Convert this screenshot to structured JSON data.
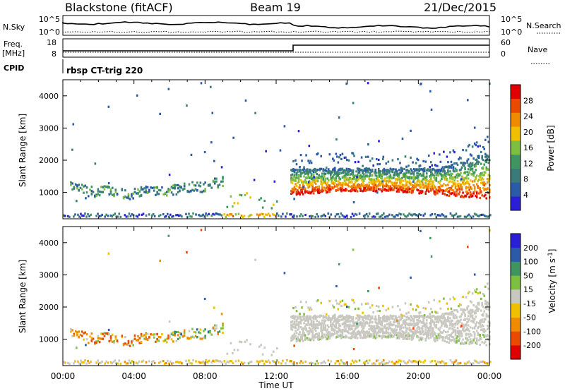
{
  "header": {
    "station": "Blackstone (fitACF)",
    "beam": "Beam 19",
    "date": "21/Dec/2015"
  },
  "panels": {
    "nsky": {
      "left_label": "N.Sky",
      "right_label": "N.Search",
      "yticks_left": [
        "10^5",
        "10^0"
      ],
      "yticks_right": [
        "10^5",
        "10^0"
      ]
    },
    "freq": {
      "left_label_1": "Freq.",
      "left_label_2": "[MHz]",
      "right_label": "Nave",
      "yticks_left": [
        "18",
        "8"
      ],
      "yticks_right": [
        "60",
        "0"
      ]
    },
    "cpid": {
      "left_label": "CPID",
      "mode": "rbsp CT-trig 220"
    }
  },
  "xaxis": {
    "label": "Time UT",
    "ticks": [
      "00:00",
      "04:00",
      "08:00",
      "12:00",
      "16:00",
      "20:00",
      "00:00"
    ]
  },
  "colors": {
    "power": [
      "#2a1fd6",
      "#2b5aa8",
      "#3a7a7a",
      "#3f9560",
      "#7fbf3f",
      "#f0c000",
      "#f08a00",
      "#ea4a00",
      "#e00000"
    ],
    "velocity": [
      "#e00000",
      "#ea4a00",
      "#f08a00",
      "#f0c000",
      "#c8c8c0",
      "#7fbf3f",
      "#3f9560",
      "#2b5aa8",
      "#2a1fd6"
    ]
  },
  "chart_data": [
    {
      "type": "heatmap",
      "title": "Power",
      "xlabel": "Time UT",
      "ylabel": "Slant Range [km]",
      "xlim": [
        "00:00",
        "24:00"
      ],
      "ylim": [
        180,
        4500
      ],
      "yticks": [
        1000,
        2000,
        3000,
        4000
      ],
      "colorbar": {
        "label": "Power [dB]",
        "ticks": [
          4,
          8,
          12,
          16,
          20,
          24,
          28
        ],
        "range": [
          0,
          32
        ]
      },
      "features": [
        {
          "name": "morning echo band",
          "time_hours": [
            0.3,
            9.0
          ],
          "range_km": [
            800,
            1300
          ],
          "typical_dB": 10
        },
        {
          "name": "near-range echoes",
          "time_hours": [
            0.0,
            24.0
          ],
          "range_km": [
            180,
            320
          ],
          "typical_dB": 8
        },
        {
          "name": "main echo band",
          "time_hours": [
            12.8,
            24.0
          ],
          "range_km": [
            800,
            2000
          ],
          "typical_dB": 26
        },
        {
          "name": "far echo fringe",
          "time_hours": [
            15.0,
            24.0
          ],
          "range_km": [
            1900,
            2600
          ],
          "typical_dB": 6
        }
      ]
    },
    {
      "type": "heatmap",
      "title": "Velocity",
      "xlabel": "Time UT",
      "ylabel": "Slant Range [km]",
      "xlim": [
        "00:00",
        "24:00"
      ],
      "ylim": [
        180,
        4500
      ],
      "yticks": [
        1000,
        2000,
        3000,
        4000
      ],
      "colorbar": {
        "label": "Velocity [m s^-1]",
        "ticks": [
          200,
          100,
          50,
          15,
          -15,
          -50,
          -100,
          -200
        ]
      },
      "features": [
        {
          "name": "morning echo band",
          "time_hours": [
            0.3,
            9.0
          ],
          "range_km": [
            800,
            1300
          ],
          "typical_velocity": -100
        },
        {
          "name": "ground scatter band",
          "time_hours": [
            12.8,
            24.0
          ],
          "range_km": [
            800,
            2000
          ],
          "typical_velocity": 0
        },
        {
          "name": "near-range echoes",
          "time_hours": [
            0.0,
            24.0
          ],
          "range_km": [
            180,
            320
          ],
          "typical_velocity": -30
        }
      ]
    }
  ]
}
